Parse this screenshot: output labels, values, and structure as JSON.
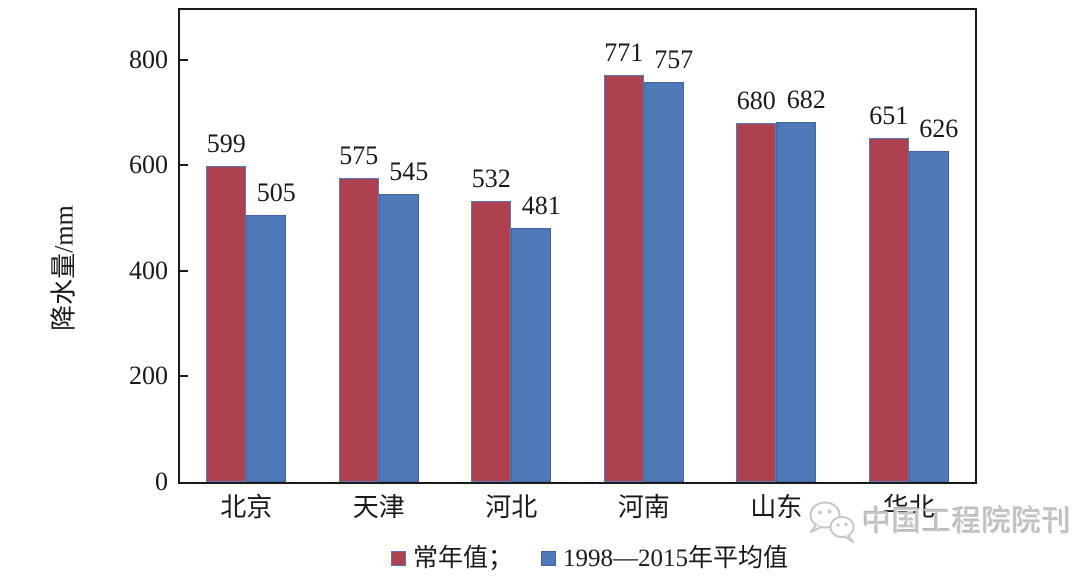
{
  "chart_data": {
    "type": "bar",
    "title": "",
    "xlabel": "",
    "ylabel": "降水量/mm",
    "categories": [
      "北京",
      "天津",
      "河北",
      "河南",
      "山东",
      "华北"
    ],
    "series": [
      {
        "name": "常年值",
        "values": [
          599,
          575,
          532,
          771,
          680,
          651
        ],
        "color": "#AD4150",
        "border_color": "#5A79B5"
      },
      {
        "name": "1998—2015年平均值",
        "values": [
          505,
          545,
          481,
          757,
          682,
          626
        ],
        "color": "#4F78B8",
        "border_color": "#41659E"
      }
    ],
    "yticks": [
      0,
      200,
      400,
      600,
      800
    ],
    "ylim": [
      0,
      895
    ],
    "grid": false,
    "value_labels_shown": true,
    "legend_position": "bottom",
    "legend": {
      "item1_label": "常年值；",
      "item2_label": "1998—2015年平均值"
    }
  },
  "watermark": {
    "text": "中国工程院院刊",
    "icon": "wechat-icon"
  }
}
